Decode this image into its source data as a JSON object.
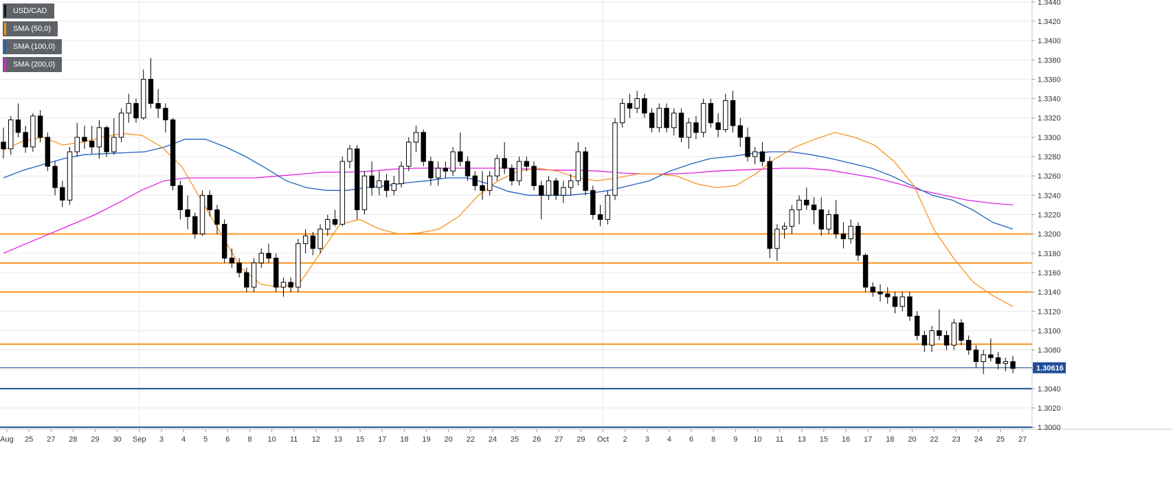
{
  "legend": [
    {
      "label": "USD/CAD",
      "color": "#111111"
    },
    {
      "label": "SMA (50,0)",
      "color": "#f7931e"
    },
    {
      "label": "SMA (100,0)",
      "color": "#1f5fbf"
    },
    {
      "label": "SMA (200,0)",
      "color": "#e020e0"
    }
  ],
  "current_price_label": "1.30616",
  "chart_data": {
    "type": "candlestick",
    "title": "",
    "symbol": "USD/CAD",
    "ylim": [
      1.2998,
      1.3442
    ],
    "yticks": [
      "1.3440",
      "1.3420",
      "1.3400",
      "1.3380",
      "1.3360",
      "1.3340",
      "1.3320",
      "1.3300",
      "1.3280",
      "1.3260",
      "1.3240",
      "1.3220",
      "1.3200",
      "1.3180",
      "1.3160",
      "1.3140",
      "1.3120",
      "1.3100",
      "1.3080",
      "1.3060",
      "1.3040",
      "1.3020",
      "1.3000"
    ],
    "xticks": [
      "Aug",
      "25",
      "27",
      "28",
      "29",
      "30",
      "Sep",
      "3",
      "4",
      "5",
      "6",
      "8",
      "10",
      "11",
      "12",
      "13",
      "15",
      "17",
      "18",
      "19",
      "20",
      "22",
      "24",
      "25",
      "26",
      "27",
      "29",
      "Oct",
      "2",
      "3",
      "4",
      "6",
      "8",
      "9",
      "10",
      "11",
      "13",
      "15",
      "16",
      "17",
      "18",
      "20",
      "22",
      "23",
      "24",
      "25",
      "27"
    ],
    "candles": [
      [
        1.3295,
        1.331,
        1.3278,
        1.3288
      ],
      [
        1.3288,
        1.3322,
        1.3282,
        1.3318
      ],
      [
        1.3318,
        1.3335,
        1.33,
        1.3305
      ],
      [
        1.3305,
        1.3312,
        1.3284,
        1.329
      ],
      [
        1.329,
        1.3325,
        1.3285,
        1.3322
      ],
      [
        1.3322,
        1.3328,
        1.3295,
        1.33
      ],
      [
        1.33,
        1.3305,
        1.3265,
        1.327
      ],
      [
        1.327,
        1.3275,
        1.324,
        1.3248
      ],
      [
        1.3248,
        1.3255,
        1.3228,
        1.3235
      ],
      [
        1.3235,
        1.329,
        1.323,
        1.3285
      ],
      [
        1.3285,
        1.3315,
        1.328,
        1.33
      ],
      [
        1.33,
        1.3312,
        1.3288,
        1.3296
      ],
      [
        1.3296,
        1.3312,
        1.3283,
        1.329
      ],
      [
        1.329,
        1.3318,
        1.3278,
        1.331
      ],
      [
        1.331,
        1.3312,
        1.328,
        1.3285
      ],
      [
        1.3285,
        1.332,
        1.3282,
        1.33
      ],
      [
        1.33,
        1.333,
        1.3295,
        1.3325
      ],
      [
        1.3325,
        1.3345,
        1.3315,
        1.3335
      ],
      [
        1.3335,
        1.334,
        1.3315,
        1.332
      ],
      [
        1.332,
        1.337,
        1.3318,
        1.336
      ],
      [
        1.336,
        1.3382,
        1.333,
        1.3335
      ],
      [
        1.3335,
        1.335,
        1.332,
        1.333
      ],
      [
        1.333,
        1.3335,
        1.3305,
        1.3318
      ],
      [
        1.3318,
        1.332,
        1.3245,
        1.325
      ],
      [
        1.325,
        1.3255,
        1.3215,
        1.3225
      ],
      [
        1.3225,
        1.324,
        1.3205,
        1.3218
      ],
      [
        1.3218,
        1.3222,
        1.3195,
        1.32
      ],
      [
        1.32,
        1.3245,
        1.3198,
        1.324
      ],
      [
        1.324,
        1.3245,
        1.3218,
        1.3225
      ],
      [
        1.3225,
        1.323,
        1.32,
        1.321
      ],
      [
        1.321,
        1.3215,
        1.317,
        1.3175
      ],
      [
        1.3175,
        1.3185,
        1.3165,
        1.317
      ],
      [
        1.317,
        1.3175,
        1.3155,
        1.316
      ],
      [
        1.316,
        1.3165,
        1.314,
        1.3145
      ],
      [
        1.3145,
        1.3175,
        1.314,
        1.317
      ],
      [
        1.317,
        1.3185,
        1.3165,
        1.318
      ],
      [
        1.318,
        1.319,
        1.317,
        1.3175
      ],
      [
        1.3175,
        1.318,
        1.314,
        1.3145
      ],
      [
        1.3145,
        1.3155,
        1.3135,
        1.315
      ],
      [
        1.315,
        1.3155,
        1.314,
        1.3145
      ],
      [
        1.3145,
        1.3195,
        1.314,
        1.319
      ],
      [
        1.319,
        1.3205,
        1.318,
        1.3198
      ],
      [
        1.3198,
        1.3202,
        1.3178,
        1.3185
      ],
      [
        1.3185,
        1.321,
        1.318,
        1.3205
      ],
      [
        1.3205,
        1.322,
        1.3198,
        1.3215
      ],
      [
        1.3215,
        1.3225,
        1.3208,
        1.321
      ],
      [
        1.321,
        1.328,
        1.3208,
        1.3275
      ],
      [
        1.3275,
        1.3292,
        1.3268,
        1.3288
      ],
      [
        1.3288,
        1.3292,
        1.3215,
        1.3225
      ],
      [
        1.3225,
        1.3265,
        1.322,
        1.326
      ],
      [
        1.326,
        1.3275,
        1.324,
        1.3248
      ],
      [
        1.3248,
        1.3265,
        1.324,
        1.3255
      ],
      [
        1.3255,
        1.3262,
        1.3238,
        1.3245
      ],
      [
        1.3245,
        1.326,
        1.324,
        1.3252
      ],
      [
        1.3252,
        1.3275,
        1.3248,
        1.327
      ],
      [
        1.327,
        1.33,
        1.3265,
        1.3295
      ],
      [
        1.3295,
        1.3312,
        1.3285,
        1.3305
      ],
      [
        1.3305,
        1.3308,
        1.327,
        1.3275
      ],
      [
        1.3275,
        1.328,
        1.325,
        1.3258
      ],
      [
        1.3258,
        1.3275,
        1.325,
        1.3268
      ],
      [
        1.3268,
        1.3275,
        1.3258,
        1.3265
      ],
      [
        1.3265,
        1.329,
        1.326,
        1.3285
      ],
      [
        1.3285,
        1.3305,
        1.327,
        1.3275
      ],
      [
        1.3275,
        1.328,
        1.3255,
        1.326
      ],
      [
        1.326,
        1.3265,
        1.3245,
        1.325
      ],
      [
        1.325,
        1.3265,
        1.3235,
        1.3245
      ],
      [
        1.3245,
        1.3265,
        1.324,
        1.326
      ],
      [
        1.326,
        1.3282,
        1.3255,
        1.3278
      ],
      [
        1.3278,
        1.3295,
        1.3262,
        1.3268
      ],
      [
        1.3268,
        1.3272,
        1.325,
        1.3255
      ],
      [
        1.3255,
        1.328,
        1.325,
        1.3275
      ],
      [
        1.3275,
        1.328,
        1.3265,
        1.327
      ],
      [
        1.327,
        1.3275,
        1.3245,
        1.325
      ],
      [
        1.325,
        1.3255,
        1.3215,
        1.324
      ],
      [
        1.324,
        1.326,
        1.3235,
        1.3255
      ],
      [
        1.3255,
        1.3258,
        1.3235,
        1.324
      ],
      [
        1.324,
        1.3255,
        1.3232,
        1.3248
      ],
      [
        1.3248,
        1.3262,
        1.324,
        1.3255
      ],
      [
        1.3255,
        1.3295,
        1.325,
        1.3285
      ],
      [
        1.3285,
        1.329,
        1.324,
        1.3245
      ],
      [
        1.3245,
        1.325,
        1.3215,
        1.322
      ],
      [
        1.322,
        1.323,
        1.3208,
        1.3215
      ],
      [
        1.3215,
        1.3245,
        1.321,
        1.324
      ],
      [
        1.324,
        1.332,
        1.3235,
        1.3315
      ],
      [
        1.3315,
        1.334,
        1.331,
        1.3335
      ],
      [
        1.3335,
        1.3345,
        1.332,
        1.333
      ],
      [
        1.333,
        1.3348,
        1.3325,
        1.334
      ],
      [
        1.334,
        1.3345,
        1.332,
        1.3325
      ],
      [
        1.3325,
        1.333,
        1.3305,
        1.331
      ],
      [
        1.331,
        1.3335,
        1.3305,
        1.333
      ],
      [
        1.333,
        1.3335,
        1.3305,
        1.331
      ],
      [
        1.331,
        1.333,
        1.3302,
        1.3325
      ],
      [
        1.3325,
        1.333,
        1.3295,
        1.33
      ],
      [
        1.33,
        1.332,
        1.3288,
        1.3315
      ],
      [
        1.3315,
        1.3322,
        1.3298,
        1.3305
      ],
      [
        1.3305,
        1.334,
        1.33,
        1.3335
      ],
      [
        1.3335,
        1.334,
        1.331,
        1.3315
      ],
      [
        1.3315,
        1.3325,
        1.33,
        1.3308
      ],
      [
        1.3308,
        1.3345,
        1.3305,
        1.3338
      ],
      [
        1.3338,
        1.3348,
        1.3305,
        1.3312
      ],
      [
        1.3312,
        1.332,
        1.329,
        1.33
      ],
      [
        1.33,
        1.331,
        1.3275,
        1.328
      ],
      [
        1.328,
        1.329,
        1.3272,
        1.3285
      ],
      [
        1.3285,
        1.3295,
        1.327,
        1.3275
      ],
      [
        1.3275,
        1.328,
        1.3175,
        1.3185
      ],
      [
        1.3185,
        1.321,
        1.3172,
        1.3205
      ],
      [
        1.3205,
        1.3212,
        1.3195,
        1.3208
      ],
      [
        1.3208,
        1.323,
        1.32,
        1.3225
      ],
      [
        1.3225,
        1.324,
        1.321,
        1.3235
      ],
      [
        1.3235,
        1.3248,
        1.3225,
        1.323
      ],
      [
        1.323,
        1.3238,
        1.321,
        1.3225
      ],
      [
        1.3225,
        1.3238,
        1.3198,
        1.3205
      ],
      [
        1.3205,
        1.3225,
        1.32,
        1.322
      ],
      [
        1.322,
        1.3235,
        1.3195,
        1.32
      ],
      [
        1.32,
        1.3212,
        1.3185,
        1.3195
      ],
      [
        1.3195,
        1.3215,
        1.319,
        1.3208
      ],
      [
        1.3208,
        1.3212,
        1.3172,
        1.3178
      ],
      [
        1.3178,
        1.318,
        1.314,
        1.3145
      ],
      [
        1.3145,
        1.315,
        1.3135,
        1.314
      ],
      [
        1.314,
        1.3148,
        1.313,
        1.3138
      ],
      [
        1.3138,
        1.3145,
        1.3128,
        1.3135
      ],
      [
        1.3135,
        1.314,
        1.3118,
        1.3125
      ],
      [
        1.3125,
        1.314,
        1.312,
        1.3135
      ],
      [
        1.3135,
        1.314,
        1.311,
        1.3115
      ],
      [
        1.3115,
        1.312,
        1.309,
        1.3095
      ],
      [
        1.3095,
        1.31,
        1.3078,
        1.3085
      ],
      [
        1.3085,
        1.3105,
        1.3078,
        1.31
      ],
      [
        1.31,
        1.3122,
        1.309,
        1.3095
      ],
      [
        1.3095,
        1.31,
        1.308,
        1.3085
      ],
      [
        1.3085,
        1.3112,
        1.308,
        1.3108
      ],
      [
        1.3108,
        1.3112,
        1.3085,
        1.309
      ],
      [
        1.309,
        1.3095,
        1.3075,
        1.308
      ],
      [
        1.308,
        1.3085,
        1.3062,
        1.3068
      ],
      [
        1.3068,
        1.308,
        1.3055,
        1.3075
      ],
      [
        1.3075,
        1.3092,
        1.3068,
        1.3072
      ],
      [
        1.3072,
        1.3078,
        1.306,
        1.3066
      ],
      [
        1.3066,
        1.3072,
        1.3058,
        1.3068
      ],
      [
        1.3068,
        1.3074,
        1.3056,
        1.3061
      ]
    ],
    "sma50": [
      1.3287,
      1.3296,
      1.33,
      1.3292,
      1.3295,
      1.33,
      1.3304,
      1.3302,
      1.329,
      1.327,
      1.3235,
      1.32,
      1.3165,
      1.3148,
      1.3145,
      1.315,
      1.318,
      1.321,
      1.3215,
      1.3205,
      1.32,
      1.3201,
      1.3205,
      1.3218,
      1.324,
      1.3255,
      1.3265,
      1.3268,
      1.3265,
      1.3258,
      1.3255,
      1.3258,
      1.3262,
      1.3262,
      1.326,
      1.3252,
      1.3248,
      1.325,
      1.3262,
      1.3278,
      1.329,
      1.3298,
      1.3305,
      1.33,
      1.3292,
      1.3275,
      1.325,
      1.3205,
      1.3175,
      1.315,
      1.3136,
      1.3125
    ],
    "sma100": [
      1.3258,
      1.3266,
      1.3272,
      1.3278,
      1.3282,
      1.3283,
      1.3284,
      1.3285,
      1.329,
      1.3298,
      1.3298,
      1.329,
      1.328,
      1.3268,
      1.3255,
      1.3248,
      1.3245,
      1.3245,
      1.3248,
      1.325,
      1.3253,
      1.3255,
      1.3258,
      1.3258,
      1.3252,
      1.3244,
      1.324,
      1.324,
      1.324,
      1.3242,
      1.3245,
      1.325,
      1.3255,
      1.3265,
      1.3272,
      1.3278,
      1.328,
      1.3283,
      1.3285,
      1.3285,
      1.3282,
      1.3278,
      1.3273,
      1.3268,
      1.326,
      1.325,
      1.324,
      1.3235,
      1.3225,
      1.3212,
      1.3205
    ],
    "sma200": [
      1.318,
      1.319,
      1.32,
      1.321,
      1.322,
      1.3232,
      1.3245,
      1.3255,
      1.3258,
      1.3258,
      1.3258,
      1.3258,
      1.326,
      1.3262,
      1.3264,
      1.3264,
      1.3265,
      1.3267,
      1.3268,
      1.3268,
      1.3268,
      1.3268,
      1.3268,
      1.3267,
      1.3266,
      1.3266,
      1.3265,
      1.3263,
      1.3262,
      1.3262,
      1.3263,
      1.3265,
      1.3266,
      1.3267,
      1.3268,
      1.3268,
      1.3266,
      1.3262,
      1.3258,
      1.3252,
      1.3245,
      1.324,
      1.3235,
      1.3232,
      1.323
    ],
    "horizontal_levels": [
      {
        "price": 1.32,
        "color": "#f7931e"
      },
      {
        "price": 1.317,
        "color": "#f7931e"
      },
      {
        "price": 1.314,
        "color": "#f7931e"
      },
      {
        "price": 1.3086,
        "color": "#f7931e"
      },
      {
        "price": 1.304,
        "color": "#1f4e99"
      },
      {
        "price": 1.3,
        "color": "#1f4e99"
      }
    ],
    "current_price": 1.30616,
    "colors": {
      "up": "#ffffff",
      "down": "#000000",
      "grid": "#e8e8e8",
      "price_tag": "#1f4e99"
    }
  }
}
